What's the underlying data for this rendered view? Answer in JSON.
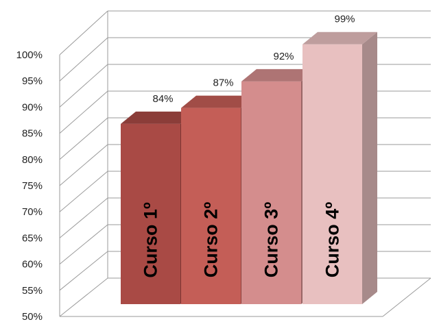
{
  "chart_data": {
    "type": "bar",
    "categories": [
      "Curso 1º",
      "Curso 2º",
      "Curso 3º",
      "Curso 4º"
    ],
    "values": [
      84,
      87,
      92,
      99
    ],
    "data_labels": [
      "84%",
      "87%",
      "92%",
      "99%"
    ],
    "y_ticks": [
      "50%",
      "55%",
      "60%",
      "65%",
      "70%",
      "75%",
      "80%",
      "85%",
      "90%",
      "95%",
      "100%"
    ],
    "ylim": [
      50,
      100
    ],
    "unit": "%",
    "grid": true,
    "style": "3d-columns",
    "colors": [
      "#a94a45",
      "#c45e57",
      "#d48d8d",
      "#e8c0c0"
    ]
  }
}
